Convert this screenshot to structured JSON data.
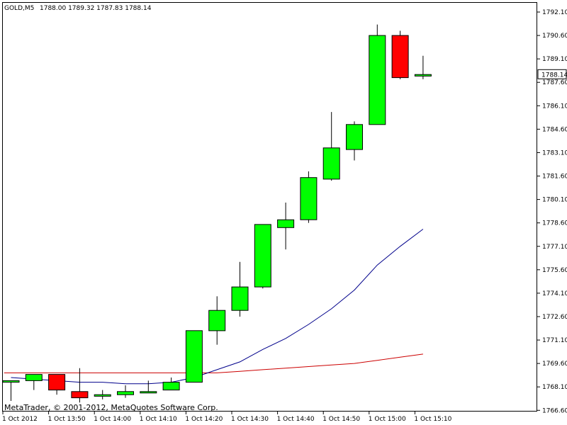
{
  "header": {
    "symbol": "GOLD,M5",
    "ohlc": "1788.00 1789.32 1787.83 1788.14"
  },
  "footer": {
    "copyright": "MetaTrader, © 2001-2012, MetaQuotes Software Corp."
  },
  "colors": {
    "background": "#ffffff",
    "bull": "#00ff00",
    "bear": "#ff0000",
    "wick": "#000000",
    "ma_fast": "#00008b",
    "ma_slow": "#cc0000",
    "price_tag_bg": "#ffffff"
  },
  "chart_data": {
    "type": "candlestick",
    "y_ticks": [
      "1792.10",
      "1790.60",
      "1789.10",
      "1787.60",
      "1786.10",
      "1784.60",
      "1783.10",
      "1781.60",
      "1780.10",
      "1778.60",
      "1777.10",
      "1775.60",
      "1774.10",
      "1772.60",
      "1771.10",
      "1769.60",
      "1768.10",
      "1766.60"
    ],
    "ylim": [
      1766.6,
      1792.6
    ],
    "x_ticks": [
      {
        "label": "1 Oct 2012",
        "index": 0
      },
      {
        "label": "1 Oct 13:50",
        "index": 2
      },
      {
        "label": "1 Oct 14:00",
        "index": 4
      },
      {
        "label": "1 Oct 14:10",
        "index": 6
      },
      {
        "label": "1 Oct 14:20",
        "index": 8
      },
      {
        "label": "1 Oct 14:30",
        "index": 10
      },
      {
        "label": "1 Oct 14:40",
        "index": 12
      },
      {
        "label": "1 Oct 14:50",
        "index": 14
      },
      {
        "label": "1 Oct 15:00",
        "index": 16
      },
      {
        "label": "1 Oct 15:10",
        "index": 18
      }
    ],
    "current_price": "1788.14",
    "candles": [
      {
        "o": 1768.4,
        "h": 1768.5,
        "l": 1767.2,
        "c": 1768.5
      },
      {
        "o": 1768.5,
        "h": 1768.9,
        "l": 1767.9,
        "c": 1768.9
      },
      {
        "o": 1768.9,
        "h": 1768.9,
        "l": 1767.6,
        "c": 1767.9
      },
      {
        "o": 1767.8,
        "h": 1769.3,
        "l": 1767.1,
        "c": 1767.4
      },
      {
        "o": 1767.5,
        "h": 1767.9,
        "l": 1767.3,
        "c": 1767.6
      },
      {
        "o": 1767.6,
        "h": 1768.2,
        "l": 1767.4,
        "c": 1767.8
      },
      {
        "o": 1767.8,
        "h": 1768.5,
        "l": 1767.7,
        "c": 1767.8
      },
      {
        "o": 1767.9,
        "h": 1768.7,
        "l": 1767.9,
        "c": 1768.4
      },
      {
        "o": 1768.4,
        "h": 1771.7,
        "l": 1768.4,
        "c": 1771.7
      },
      {
        "o": 1771.7,
        "h": 1773.9,
        "l": 1770.8,
        "c": 1773.0
      },
      {
        "o": 1773.0,
        "h": 1776.1,
        "l": 1772.6,
        "c": 1774.5
      },
      {
        "o": 1774.5,
        "h": 1778.5,
        "l": 1774.4,
        "c": 1778.5
      },
      {
        "o": 1778.3,
        "h": 1779.9,
        "l": 1776.9,
        "c": 1778.8
      },
      {
        "o": 1778.8,
        "h": 1781.9,
        "l": 1778.6,
        "c": 1781.5
      },
      {
        "o": 1781.4,
        "h": 1785.7,
        "l": 1781.3,
        "c": 1783.4
      },
      {
        "o": 1783.3,
        "h": 1785.1,
        "l": 1782.6,
        "c": 1784.9
      },
      {
        "o": 1784.9,
        "h": 1791.3,
        "l": 1784.9,
        "c": 1790.6
      },
      {
        "o": 1790.6,
        "h": 1790.9,
        "l": 1787.8,
        "c": 1787.9
      },
      {
        "o": 1788.0,
        "h": 1789.3,
        "l": 1787.8,
        "c": 1788.1
      }
    ],
    "ma_fast": {
      "x": [
        0,
        1,
        2,
        3,
        4,
        5,
        6,
        7,
        8,
        9,
        10,
        11,
        12,
        13,
        14,
        15,
        16,
        17,
        18
      ],
      "values": [
        1768.7,
        1768.6,
        1768.5,
        1768.4,
        1768.4,
        1768.3,
        1768.3,
        1768.4,
        1768.7,
        1769.2,
        1769.7,
        1770.5,
        1771.2,
        1772.1,
        1773.1,
        1774.3,
        1775.9,
        1777.1,
        1778.2
      ]
    },
    "ma_slow": {
      "x": [
        -0.3,
        7,
        8,
        9,
        10,
        11,
        12,
        13,
        14,
        15,
        16,
        17,
        18
      ],
      "values": [
        1769.0,
        1769.0,
        1769.0,
        1769.0,
        1769.1,
        1769.2,
        1769.3,
        1769.4,
        1769.5,
        1769.6,
        1769.8,
        1770.0,
        1770.2
      ]
    }
  }
}
